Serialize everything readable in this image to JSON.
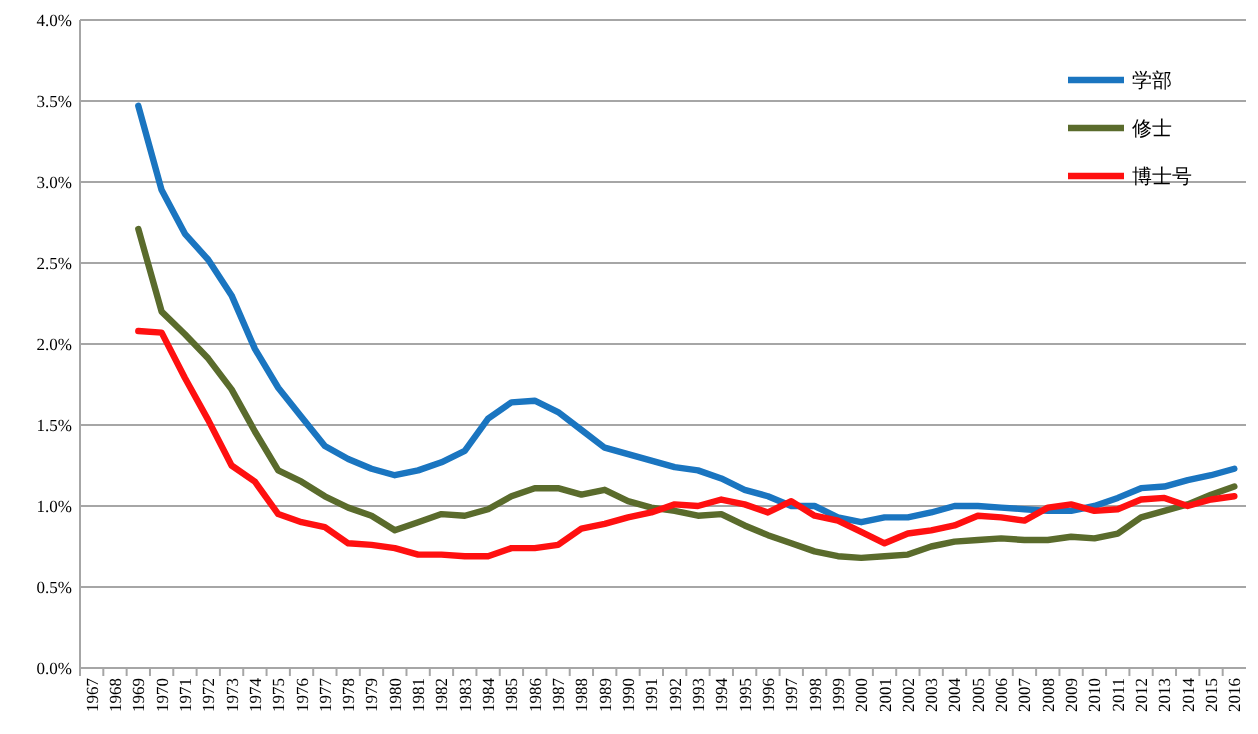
{
  "chart_data": {
    "type": "line",
    "categories": [
      "1967",
      "1968",
      "1969",
      "1970",
      "1971",
      "1972",
      "1973",
      "1974",
      "1975",
      "1976",
      "1977",
      "1978",
      "1979",
      "1980",
      "1981",
      "1982",
      "1983",
      "1984",
      "1985",
      "1986",
      "1987",
      "1988",
      "1989",
      "1990",
      "1991",
      "1992",
      "1993",
      "1994",
      "1995",
      "1996",
      "1997",
      "1998",
      "1999",
      "2000",
      "2001",
      "2002",
      "2003",
      "2004",
      "2005",
      "2006",
      "2007",
      "2008",
      "2009",
      "2010",
      "2011",
      "2012",
      "2013",
      "2014",
      "2015",
      "2016"
    ],
    "series": [
      {
        "name": "学部",
        "color": "#1a75c0",
        "values": [
          null,
          null,
          3.47,
          2.95,
          2.68,
          2.52,
          2.3,
          1.97,
          1.73,
          1.55,
          1.37,
          1.29,
          1.23,
          1.19,
          1.22,
          1.27,
          1.34,
          1.54,
          1.64,
          1.65,
          1.58,
          1.47,
          1.36,
          1.32,
          1.28,
          1.24,
          1.22,
          1.17,
          1.1,
          1.06,
          1.0,
          1.0,
          0.93,
          0.9,
          0.93,
          0.93,
          0.96,
          1.0,
          1.0,
          0.99,
          0.98,
          0.97,
          0.97,
          1.0,
          1.05,
          1.11,
          1.12,
          1.16,
          1.19,
          1.23
        ]
      },
      {
        "name": "修士",
        "color": "#5a6b2c",
        "values": [
          null,
          null,
          2.71,
          2.2,
          2.06,
          1.91,
          1.72,
          1.46,
          1.22,
          1.15,
          1.06,
          0.99,
          0.94,
          0.85,
          0.9,
          0.95,
          0.94,
          0.98,
          1.06,
          1.11,
          1.11,
          1.07,
          1.1,
          1.03,
          0.99,
          0.97,
          0.94,
          0.95,
          0.88,
          0.82,
          0.77,
          0.72,
          0.69,
          0.68,
          0.69,
          0.7,
          0.75,
          0.78,
          0.79,
          0.8,
          0.79,
          0.79,
          0.81,
          0.8,
          0.83,
          0.93,
          0.97,
          1.01,
          1.07,
          1.12
        ]
      },
      {
        "name": "博士号",
        "color": "#ff1010",
        "values": [
          null,
          null,
          2.08,
          2.07,
          1.79,
          1.53,
          1.25,
          1.15,
          0.95,
          0.9,
          0.87,
          0.77,
          0.76,
          0.74,
          0.7,
          0.7,
          0.69,
          0.69,
          0.74,
          0.74,
          0.76,
          0.86,
          0.89,
          0.93,
          0.96,
          1.01,
          1.0,
          1.04,
          1.01,
          0.96,
          1.03,
          0.94,
          0.91,
          0.84,
          0.77,
          0.83,
          0.85,
          0.88,
          0.94,
          0.93,
          0.91,
          0.99,
          1.01,
          0.97,
          0.98,
          1.04,
          1.05,
          1.0,
          1.04,
          1.06
        ]
      }
    ],
    "ylim": [
      0,
      4
    ],
    "yticks": [
      {
        "value": 0,
        "label": "0.0%"
      },
      {
        "value": 0.5,
        "label": "0.5%"
      },
      {
        "value": 1,
        "label": "1.0%"
      },
      {
        "value": 1.5,
        "label": "1.5%"
      },
      {
        "value": 2,
        "label": "2.0%"
      },
      {
        "value": 2.5,
        "label": "2.5%"
      },
      {
        "value": 3,
        "label": "3.0%"
      },
      {
        "value": 3.5,
        "label": "3.5%"
      },
      {
        "value": 4,
        "label": "4.0%"
      }
    ],
    "grid": "y",
    "legend": "top right",
    "marker": "none",
    "line_style": "solid"
  }
}
